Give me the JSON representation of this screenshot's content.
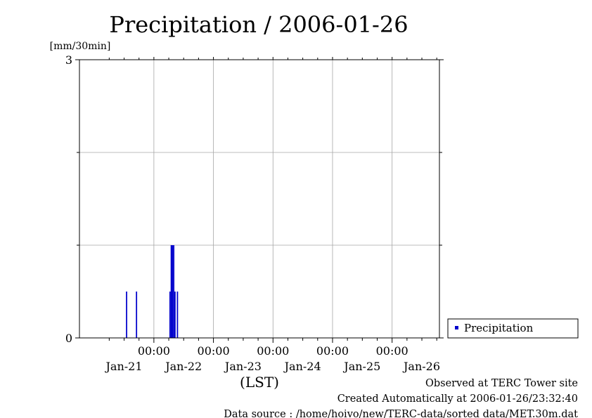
{
  "chart_data": {
    "type": "bar",
    "title": "Precipitation / 2006-01-26",
    "y_unit": "[mm/30min]",
    "xlabel": "(LST)",
    "ylim": [
      0,
      3
    ],
    "y_ticks": [
      "0",
      "3"
    ],
    "x_tick_times": [
      "00:00",
      "00:00",
      "00:00",
      "00:00",
      "00:00"
    ],
    "x_day_labels": [
      "Jan-21",
      "Jan-22",
      "Jan-23",
      "Jan-24",
      "Jan-25",
      "Jan-26"
    ],
    "grid": true,
    "legend_position": "right",
    "series": [
      {
        "name": "Precipitation",
        "color": "#0000cc",
        "points": [
          {
            "x": "2006-01-20 13:00",
            "y": 0.5
          },
          {
            "x": "2006-01-20 17:00",
            "y": 0.5
          },
          {
            "x": "2006-01-21 06:30",
            "y": 0.5
          },
          {
            "x": "2006-01-21 07:00",
            "y": 1.0
          },
          {
            "x": "2006-01-21 07:30",
            "y": 1.0
          },
          {
            "x": "2006-01-21 08:00",
            "y": 1.0
          },
          {
            "x": "2006-01-21 08:30",
            "y": 0.5
          },
          {
            "x": "2006-01-21 09:30",
            "y": 0.5
          }
        ]
      }
    ]
  },
  "footer": {
    "observed": "Observed at TERC Tower site",
    "created": "Created Automatically at 2006-01-26/23:32:40",
    "source": "Data source : /home/hoivo/new/TERC-data/sorted  data/MET.30m.dat"
  }
}
